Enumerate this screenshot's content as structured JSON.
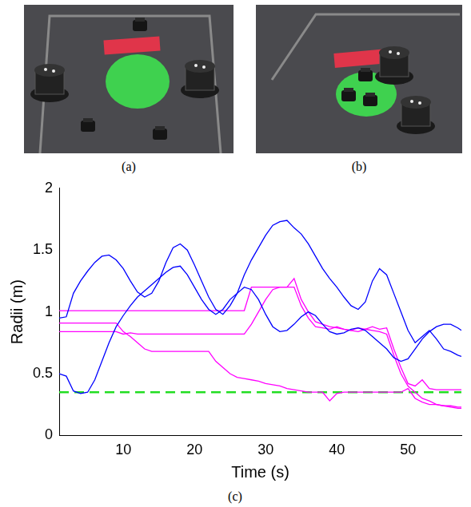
{
  "panel_labels": [
    "(a)",
    "(b)",
    "(c)"
  ],
  "chart_data": {
    "type": "line",
    "y_label": "Radii (m)",
    "x_label": "Time (s)",
    "x": [
      1,
      2,
      3,
      4,
      5,
      6,
      7,
      8,
      9,
      10,
      11,
      12,
      13,
      14,
      15,
      16,
      17,
      18,
      19,
      20,
      21,
      22,
      23,
      24,
      25,
      26,
      27,
      28,
      29,
      30,
      31,
      32,
      33,
      34,
      35,
      36,
      37,
      38,
      39,
      40,
      41,
      42,
      43,
      44,
      45,
      46,
      47,
      48,
      49,
      50,
      51,
      52,
      53,
      54,
      55,
      56,
      57,
      57.5
    ],
    "xlim": [
      1,
      57.5
    ],
    "xticks": [
      10,
      20,
      30,
      40,
      50
    ],
    "ylim": [
      0,
      2
    ],
    "yticks": [
      0,
      0.5,
      1,
      1.5,
      2
    ],
    "grid": false,
    "series": [
      {
        "color": "#0000ff",
        "values": [
          0.95,
          0.96,
          1.15,
          1.25,
          1.33,
          1.4,
          1.45,
          1.46,
          1.42,
          1.35,
          1.25,
          1.16,
          1.12,
          1.15,
          1.25,
          1.4,
          1.52,
          1.55,
          1.5,
          1.38,
          1.25,
          1.12,
          1.02,
          0.98,
          1.05,
          1.15,
          1.3,
          1.42,
          1.52,
          1.62,
          1.7,
          1.73,
          1.74,
          1.68,
          1.63,
          1.55,
          1.45,
          1.35,
          1.27,
          1.2,
          1.12,
          1.05,
          1.02,
          1.08,
          1.25,
          1.35,
          1.3,
          1.15,
          1.0,
          0.85,
          0.75,
          0.8,
          0.85,
          0.78,
          0.7,
          0.68,
          0.65,
          0.64
        ]
      },
      {
        "color": "#0000ff",
        "values": [
          0.5,
          0.48,
          0.36,
          0.34,
          0.35,
          0.45,
          0.6,
          0.75,
          0.88,
          0.97,
          1.05,
          1.12,
          1.17,
          1.22,
          1.27,
          1.32,
          1.36,
          1.37,
          1.3,
          1.2,
          1.1,
          1.02,
          0.98,
          1.02,
          1.1,
          1.15,
          1.2,
          1.18,
          1.1,
          0.98,
          0.88,
          0.84,
          0.85,
          0.9,
          0.96,
          1.0,
          0.97,
          0.9,
          0.84,
          0.82,
          0.83,
          0.86,
          0.87,
          0.85,
          0.8,
          0.75,
          0.7,
          0.63,
          0.6,
          0.62,
          0.7,
          0.78,
          0.84,
          0.88,
          0.9,
          0.9,
          0.87,
          0.85
        ]
      },
      {
        "color": "#ff00ff",
        "values": [
          1.01,
          1.01,
          1.01,
          1.01,
          1.01,
          1.01,
          1.01,
          1.01,
          1.01,
          1.01,
          1.01,
          1.01,
          1.01,
          1.01,
          1.01,
          1.01,
          1.01,
          1.01,
          1.01,
          1.01,
          1.01,
          1.01,
          1.01,
          1.01,
          1.01,
          1.01,
          1.01,
          1.2,
          1.2,
          1.2,
          1.2,
          1.2,
          1.2,
          1.27,
          1.1,
          1.0,
          0.92,
          0.9,
          0.88,
          0.87,
          0.86,
          0.85,
          0.87,
          0.86,
          0.88,
          0.86,
          0.87,
          0.7,
          0.55,
          0.42,
          0.4,
          0.45,
          0.38,
          0.37,
          0.37,
          0.37,
          0.37,
          0.37
        ]
      },
      {
        "color": "#ff00ff",
        "values": [
          0.91,
          0.91,
          0.91,
          0.91,
          0.91,
          0.91,
          0.91,
          0.91,
          0.91,
          0.84,
          0.8,
          0.75,
          0.7,
          0.68,
          0.68,
          0.68,
          0.68,
          0.68,
          0.68,
          0.68,
          0.68,
          0.68,
          0.6,
          0.55,
          0.5,
          0.47,
          0.46,
          0.45,
          0.44,
          0.42,
          0.41,
          0.4,
          0.38,
          0.37,
          0.36,
          0.35,
          0.35,
          0.35,
          0.28,
          0.34,
          0.35,
          0.35,
          0.35,
          0.35,
          0.35,
          0.35,
          0.35,
          0.35,
          0.35,
          0.38,
          0.3,
          0.27,
          0.25,
          0.25,
          0.24,
          0.24,
          0.23,
          0.23
        ]
      },
      {
        "color": "#ff00ff",
        "values": [
          0.84,
          0.84,
          0.84,
          0.84,
          0.84,
          0.84,
          0.84,
          0.84,
          0.84,
          0.82,
          0.83,
          0.82,
          0.82,
          0.82,
          0.82,
          0.82,
          0.82,
          0.82,
          0.82,
          0.82,
          0.82,
          0.82,
          0.82,
          0.82,
          0.82,
          0.82,
          0.82,
          0.9,
          1.0,
          1.1,
          1.18,
          1.2,
          1.2,
          1.2,
          1.05,
          0.95,
          0.88,
          0.87,
          0.86,
          0.88,
          0.86,
          0.85,
          0.84,
          0.86,
          0.85,
          0.84,
          0.82,
          0.65,
          0.5,
          0.4,
          0.35,
          0.3,
          0.28,
          0.25,
          0.24,
          0.23,
          0.22,
          0.22
        ]
      },
      {
        "color": "#22dd22",
        "line_style": "dashed",
        "values": [
          0.35,
          0.35,
          0.35,
          0.35,
          0.35,
          0.35,
          0.35,
          0.35,
          0.35,
          0.35,
          0.35,
          0.35,
          0.35,
          0.35,
          0.35,
          0.35,
          0.35,
          0.35,
          0.35,
          0.35,
          0.35,
          0.35,
          0.35,
          0.35,
          0.35,
          0.35,
          0.35,
          0.35,
          0.35,
          0.35,
          0.35,
          0.35,
          0.35,
          0.35,
          0.35,
          0.35,
          0.35,
          0.35,
          0.35,
          0.35,
          0.35,
          0.35,
          0.35,
          0.35,
          0.35,
          0.35,
          0.35,
          0.35,
          0.35,
          0.35,
          0.35,
          0.35,
          0.35,
          0.35,
          0.35,
          0.35,
          0.35,
          0.35
        ]
      }
    ]
  }
}
